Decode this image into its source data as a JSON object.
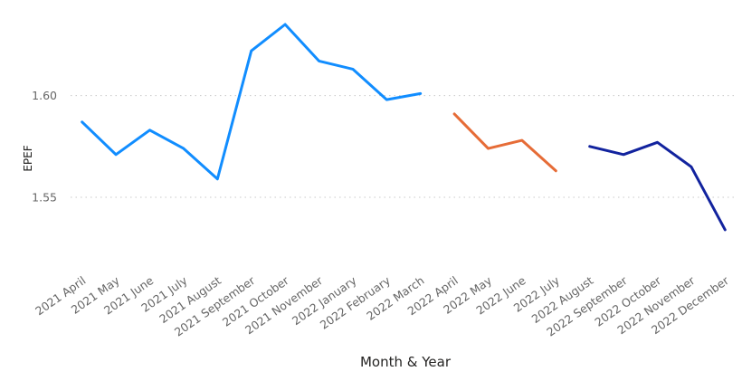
{
  "chart_data": {
    "type": "line",
    "title": "",
    "xlabel": "Month & Year",
    "ylabel": "EPEF",
    "ylim": [
      1.5135,
      1.639
    ],
    "yticks": [
      1.55,
      1.6
    ],
    "ytick_labels": [
      "1.55",
      "1.60"
    ],
    "grid": "horizontal dotted",
    "legend": "none",
    "categories": [
      "2021 April",
      "2021 May",
      "2021 June",
      "2021 July",
      "2021 August",
      "2021 September",
      "2021 October",
      "2021 November",
      "2022 January",
      "2022 February",
      "2022 March",
      "2022 April",
      "2022 May",
      "2022 June",
      "2022 July",
      "2022 August",
      "2022 September",
      "2022 October",
      "2022 November",
      "2022 December"
    ],
    "series": [
      {
        "color": "#118DFF",
        "values": [
          1.587,
          1.571,
          1.583,
          1.574,
          1.559,
          1.622,
          1.635,
          1.617,
          1.613,
          1.598,
          1.601,
          null,
          null,
          null,
          null,
          null,
          null,
          null,
          null,
          null
        ]
      },
      {
        "color": "#E66C37",
        "values": [
          null,
          null,
          null,
          null,
          null,
          null,
          null,
          null,
          null,
          null,
          null,
          1.591,
          1.574,
          1.578,
          1.563,
          null,
          null,
          null,
          null,
          null
        ]
      },
      {
        "color": "#12239E",
        "values": [
          null,
          null,
          null,
          null,
          null,
          null,
          null,
          null,
          null,
          null,
          null,
          null,
          null,
          null,
          null,
          1.575,
          1.571,
          1.577,
          1.565,
          1.534
        ]
      }
    ]
  }
}
